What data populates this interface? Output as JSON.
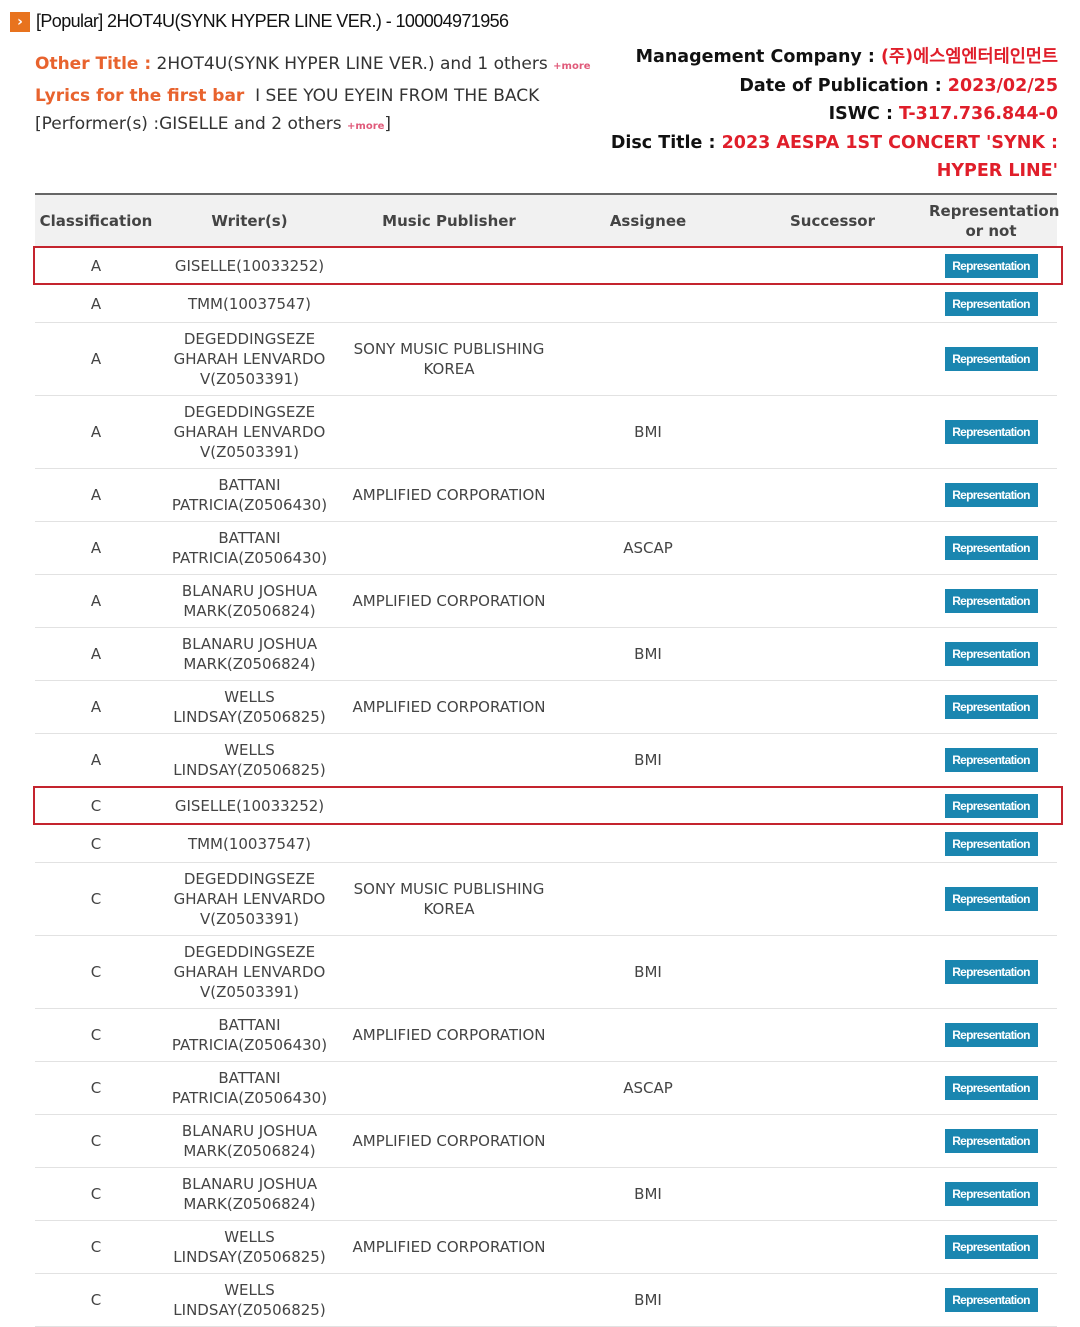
{
  "header": {
    "chevron_icon": "chevron-right-icon",
    "title": "[Popular] 2HOT4U(SYNK HYPER LINE VER.) - 100004971956"
  },
  "info": {
    "other_title_label": "Other Title :",
    "other_title_value": "2HOT4U(SYNK HYPER LINE VER.) and 1 others",
    "more_label": "+more",
    "lyrics_label": "Lyrics for the first bar",
    "lyrics_value": "I SEE YOU EYEIN FROM THE BACK",
    "performer_prefix": "[Performer(s) :GISELLE and 2 others",
    "performer_suffix": "]",
    "management_label": "Management Company :",
    "management_value": "(주)에스엠엔터테인먼트",
    "date_label": "Date of Publication :",
    "date_value": "2023/02/25",
    "iswc_label": "ISWC :",
    "iswc_value": "T-317.736.844-0",
    "disc_label": "Disc Title :",
    "disc_value": "2023 AESPA 1ST CONCERT 'SYNK : HYPER LINE'"
  },
  "colors": {
    "accent_orange": "#e8632e",
    "value_red": "#e01e2a",
    "button_blue": "#1a86b0",
    "highlight_red": "#c4242e"
  },
  "table": {
    "columns": [
      "Classification",
      "Writer(s)",
      "Music Publisher",
      "Assignee",
      "Successor",
      "Representation\nor not"
    ],
    "button_label": "Representation",
    "rows": [
      {
        "cls": "A",
        "writer": "GISELLE(10033252)",
        "publisher": "",
        "assignee": "",
        "successor": "",
        "highlighted": true
      },
      {
        "cls": "A",
        "writer": "TMM(10037547)",
        "publisher": "",
        "assignee": "",
        "successor": ""
      },
      {
        "cls": "A",
        "writer": "DEGEDDINGSEZE\nGHARAH LENVARDO\nV(Z0503391)",
        "publisher": "SONY MUSIC PUBLISHING\nKOREA",
        "assignee": "",
        "successor": ""
      },
      {
        "cls": "A",
        "writer": "DEGEDDINGSEZE\nGHARAH LENVARDO\nV(Z0503391)",
        "publisher": "",
        "assignee": "BMI",
        "successor": ""
      },
      {
        "cls": "A",
        "writer": "BATTANI\nPATRICIA(Z0506430)",
        "publisher": "AMPLIFIED CORPORATION",
        "assignee": "",
        "successor": ""
      },
      {
        "cls": "A",
        "writer": "BATTANI\nPATRICIA(Z0506430)",
        "publisher": "",
        "assignee": "ASCAP",
        "successor": ""
      },
      {
        "cls": "A",
        "writer": "BLANARU JOSHUA\nMARK(Z0506824)",
        "publisher": "AMPLIFIED CORPORATION",
        "assignee": "",
        "successor": ""
      },
      {
        "cls": "A",
        "writer": "BLANARU JOSHUA\nMARK(Z0506824)",
        "publisher": "",
        "assignee": "BMI",
        "successor": ""
      },
      {
        "cls": "A",
        "writer": "WELLS\nLINDSAY(Z0506825)",
        "publisher": "AMPLIFIED CORPORATION",
        "assignee": "",
        "successor": ""
      },
      {
        "cls": "A",
        "writer": "WELLS\nLINDSAY(Z0506825)",
        "publisher": "",
        "assignee": "BMI",
        "successor": ""
      },
      {
        "cls": "C",
        "writer": "GISELLE(10033252)",
        "publisher": "",
        "assignee": "",
        "successor": "",
        "highlighted": true
      },
      {
        "cls": "C",
        "writer": "TMM(10037547)",
        "publisher": "",
        "assignee": "",
        "successor": ""
      },
      {
        "cls": "C",
        "writer": "DEGEDDINGSEZE\nGHARAH LENVARDO\nV(Z0503391)",
        "publisher": "SONY MUSIC PUBLISHING\nKOREA",
        "assignee": "",
        "successor": ""
      },
      {
        "cls": "C",
        "writer": "DEGEDDINGSEZE\nGHARAH LENVARDO\nV(Z0503391)",
        "publisher": "",
        "assignee": "BMI",
        "successor": ""
      },
      {
        "cls": "C",
        "writer": "BATTANI\nPATRICIA(Z0506430)",
        "publisher": "AMPLIFIED CORPORATION",
        "assignee": "",
        "successor": ""
      },
      {
        "cls": "C",
        "writer": "BATTANI\nPATRICIA(Z0506430)",
        "publisher": "",
        "assignee": "ASCAP",
        "successor": ""
      },
      {
        "cls": "C",
        "writer": "BLANARU JOSHUA\nMARK(Z0506824)",
        "publisher": "AMPLIFIED CORPORATION",
        "assignee": "",
        "successor": ""
      },
      {
        "cls": "C",
        "writer": "BLANARU JOSHUA\nMARK(Z0506824)",
        "publisher": "",
        "assignee": "BMI",
        "successor": ""
      },
      {
        "cls": "C",
        "writer": "WELLS\nLINDSAY(Z0506825)",
        "publisher": "AMPLIFIED CORPORATION",
        "assignee": "",
        "successor": ""
      },
      {
        "cls": "C",
        "writer": "WELLS\nLINDSAY(Z0506825)",
        "publisher": "",
        "assignee": "BMI",
        "successor": ""
      }
    ]
  }
}
